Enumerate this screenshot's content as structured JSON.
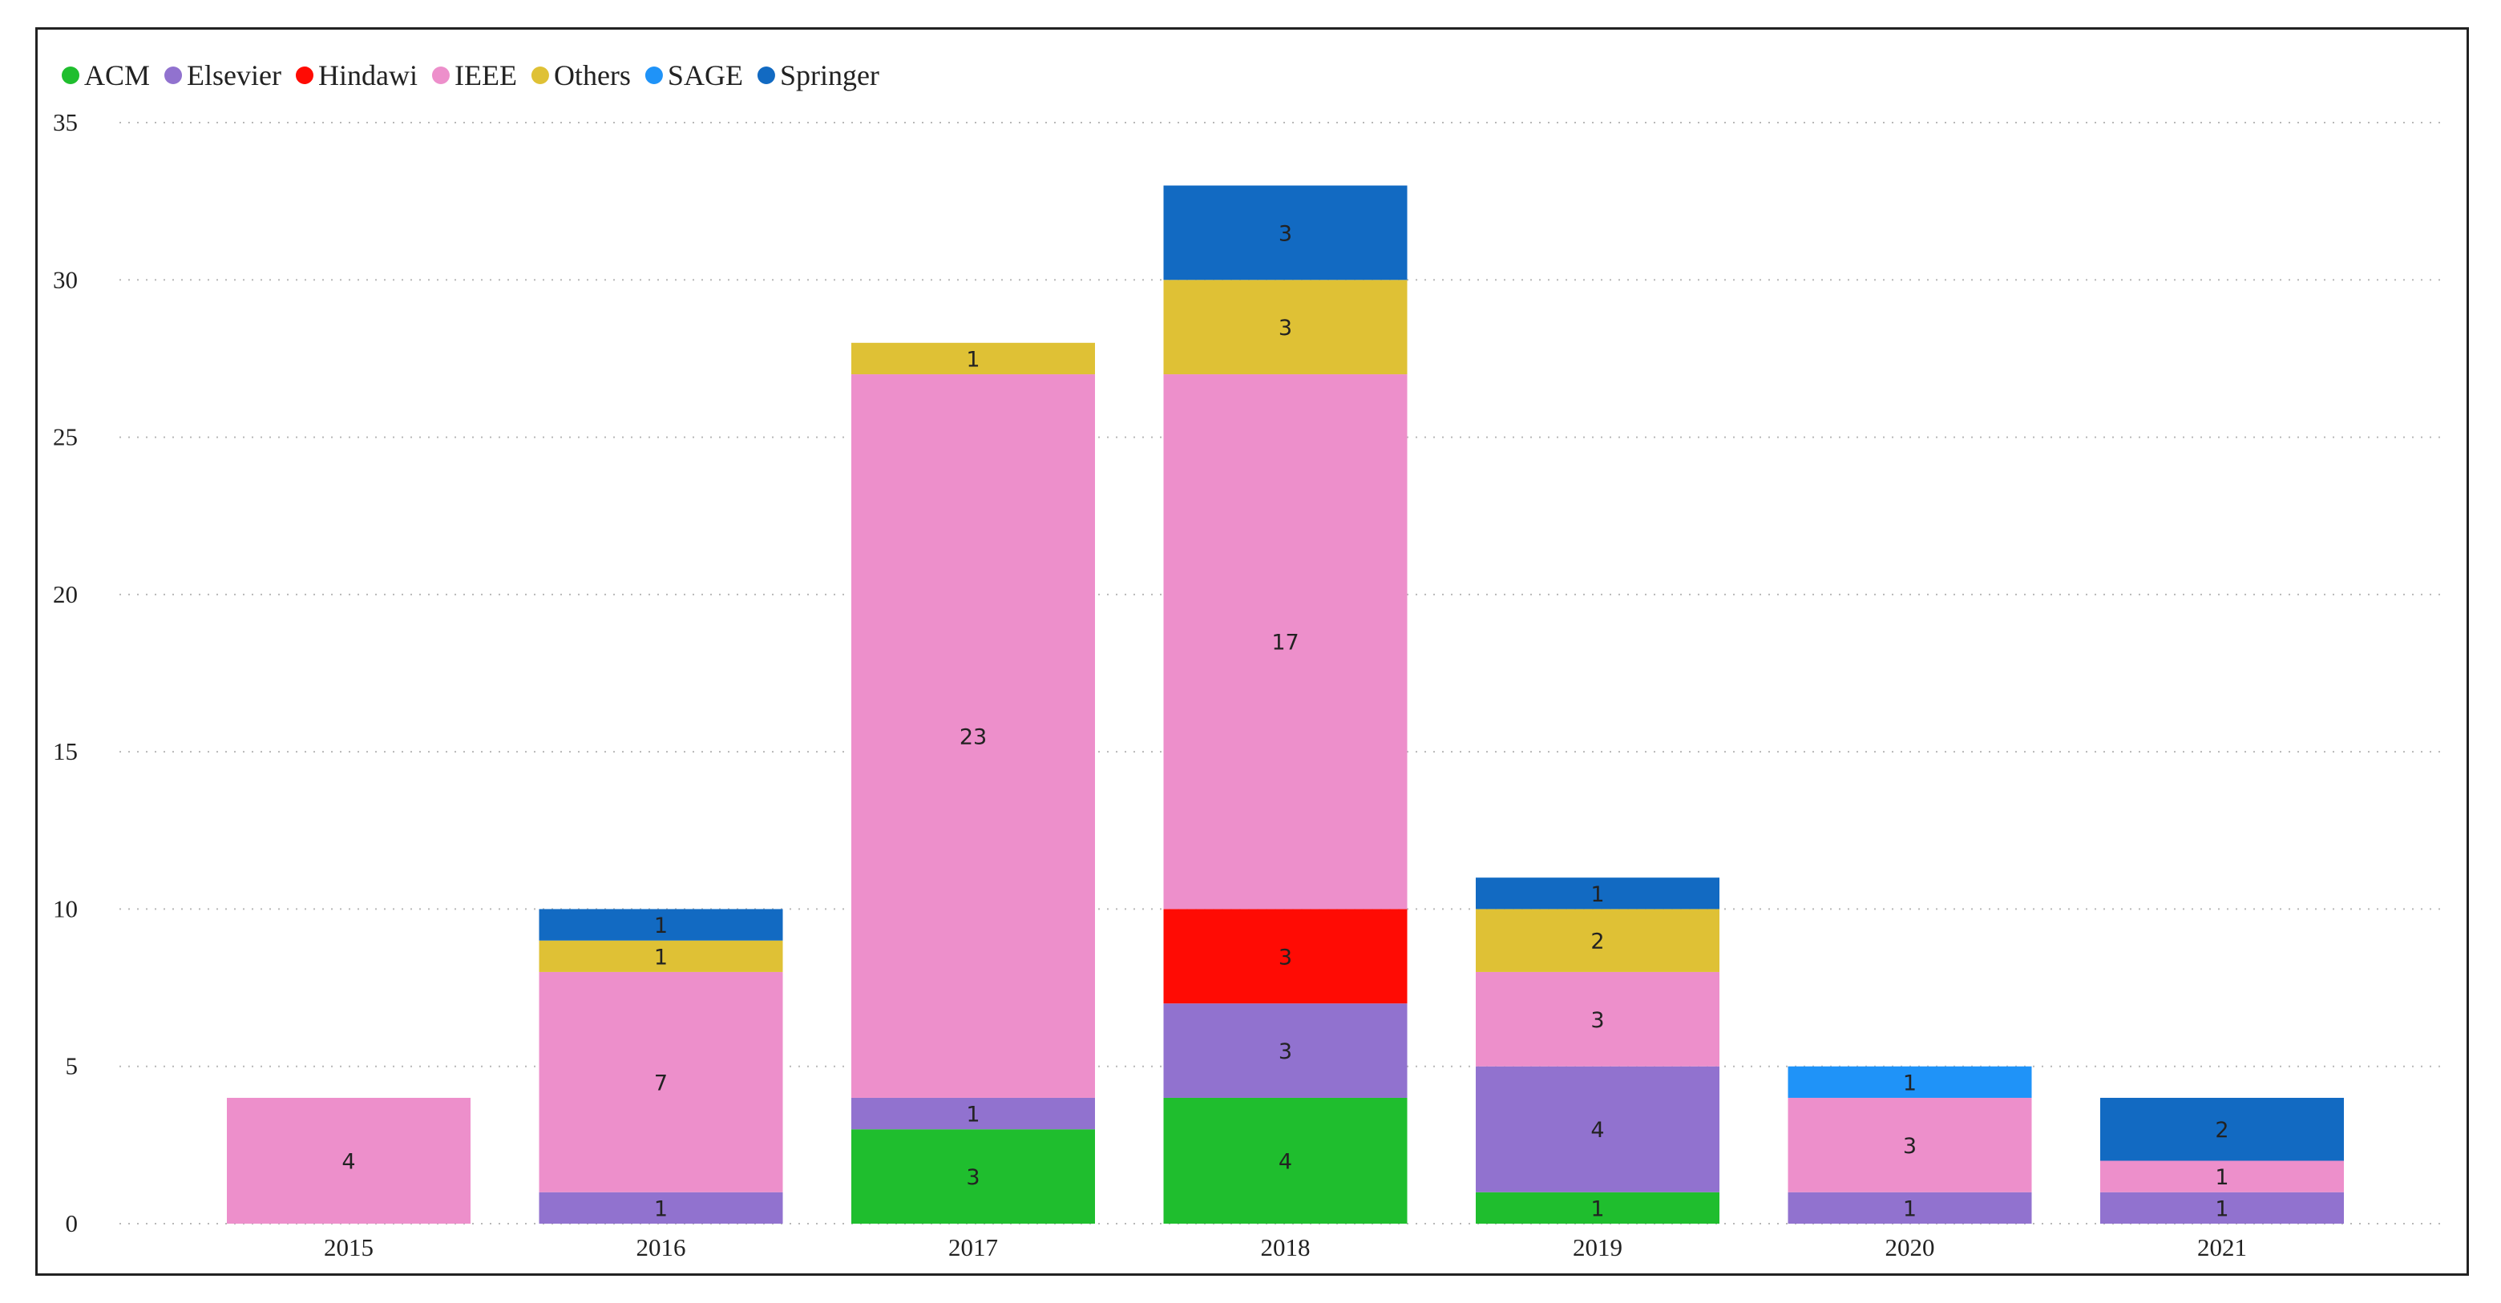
{
  "chart_data": {
    "type": "bar",
    "stacked": true,
    "title": "",
    "xlabel": "",
    "ylabel": "",
    "ylim": [
      0,
      35
    ],
    "yticks": [
      0,
      5,
      10,
      15,
      20,
      25,
      30,
      35
    ],
    "grid": "horizontal-dotted",
    "legend_position": "top-left",
    "categories": [
      "2015",
      "2016",
      "2017",
      "2018",
      "2019",
      "2020",
      "2021"
    ],
    "series": [
      {
        "name": "ACM",
        "color": "#1fbe2e",
        "values": [
          0,
          0,
          3,
          4,
          1,
          0,
          0
        ]
      },
      {
        "name": "Elsevier",
        "color": "#9172cf",
        "values": [
          0,
          1,
          1,
          3,
          4,
          1,
          1
        ]
      },
      {
        "name": "Hindawi",
        "color": "#ff0b04",
        "values": [
          0,
          0,
          0,
          3,
          0,
          0,
          0
        ]
      },
      {
        "name": "IEEE",
        "color": "#ed8fcb",
        "values": [
          4,
          7,
          23,
          17,
          3,
          3,
          1
        ]
      },
      {
        "name": "Others",
        "color": "#dfc135",
        "values": [
          0,
          1,
          1,
          3,
          2,
          0,
          0
        ]
      },
      {
        "name": "SAGE",
        "color": "#1f93f8",
        "values": [
          0,
          0,
          0,
          0,
          0,
          1,
          0
        ]
      },
      {
        "name": "Springer",
        "color": "#126ac2",
        "values": [
          0,
          1,
          0,
          3,
          1,
          0,
          2
        ]
      }
    ]
  }
}
